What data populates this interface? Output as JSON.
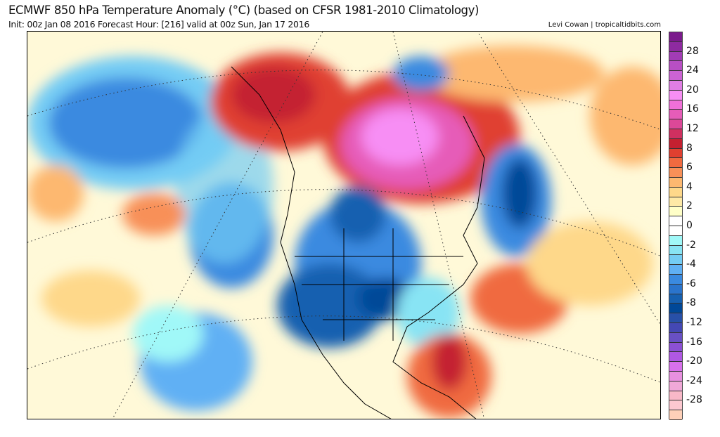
{
  "header": {
    "title": "ECMWF 850 hPa Temperature Anomaly (°C) (based on CFSR 1981-2010 Climatology)",
    "subtitle": "Init: 00z Jan 08 2016   Forecast Hour: [216]   valid at 00z Sun, Jan 17 2016",
    "credit": "Levi Cowan | tropicaltidbits.com"
  },
  "colorbar": {
    "labels": [
      "28",
      "24",
      "20",
      "16",
      "12",
      "8",
      "6",
      "4",
      "2",
      "0",
      "-2",
      "-4",
      "-6",
      "-8",
      "-12",
      "-16",
      "-20",
      "-24",
      "-28"
    ],
    "colors": [
      "#7b1a8c",
      "#8e2aa0",
      "#a23cb5",
      "#b84fc4",
      "#cc63d4",
      "#e07ee4",
      "#f78ef4",
      "#f070d8",
      "#e65cb8",
      "#dc4898",
      "#d03060",
      "#c42030",
      "#e04030",
      "#f06a40",
      "#f89058",
      "#fdb870",
      "#fed88a",
      "#fee9a6",
      "#ffffc8",
      "#ffffff",
      "#ffffff",
      "#a0f8f8",
      "#88e4f4",
      "#74ccf4",
      "#60b0f4",
      "#3a8ae0",
      "#2a74cc",
      "#1660b0",
      "#004898",
      "#2850a8",
      "#4448b4",
      "#6850c4",
      "#8c50d4",
      "#b058e4",
      "#d870ec",
      "#e890e0",
      "#f0a8d8",
      "#f8b8c8",
      "#fcc8d0",
      "#fed0b8"
    ]
  }
}
